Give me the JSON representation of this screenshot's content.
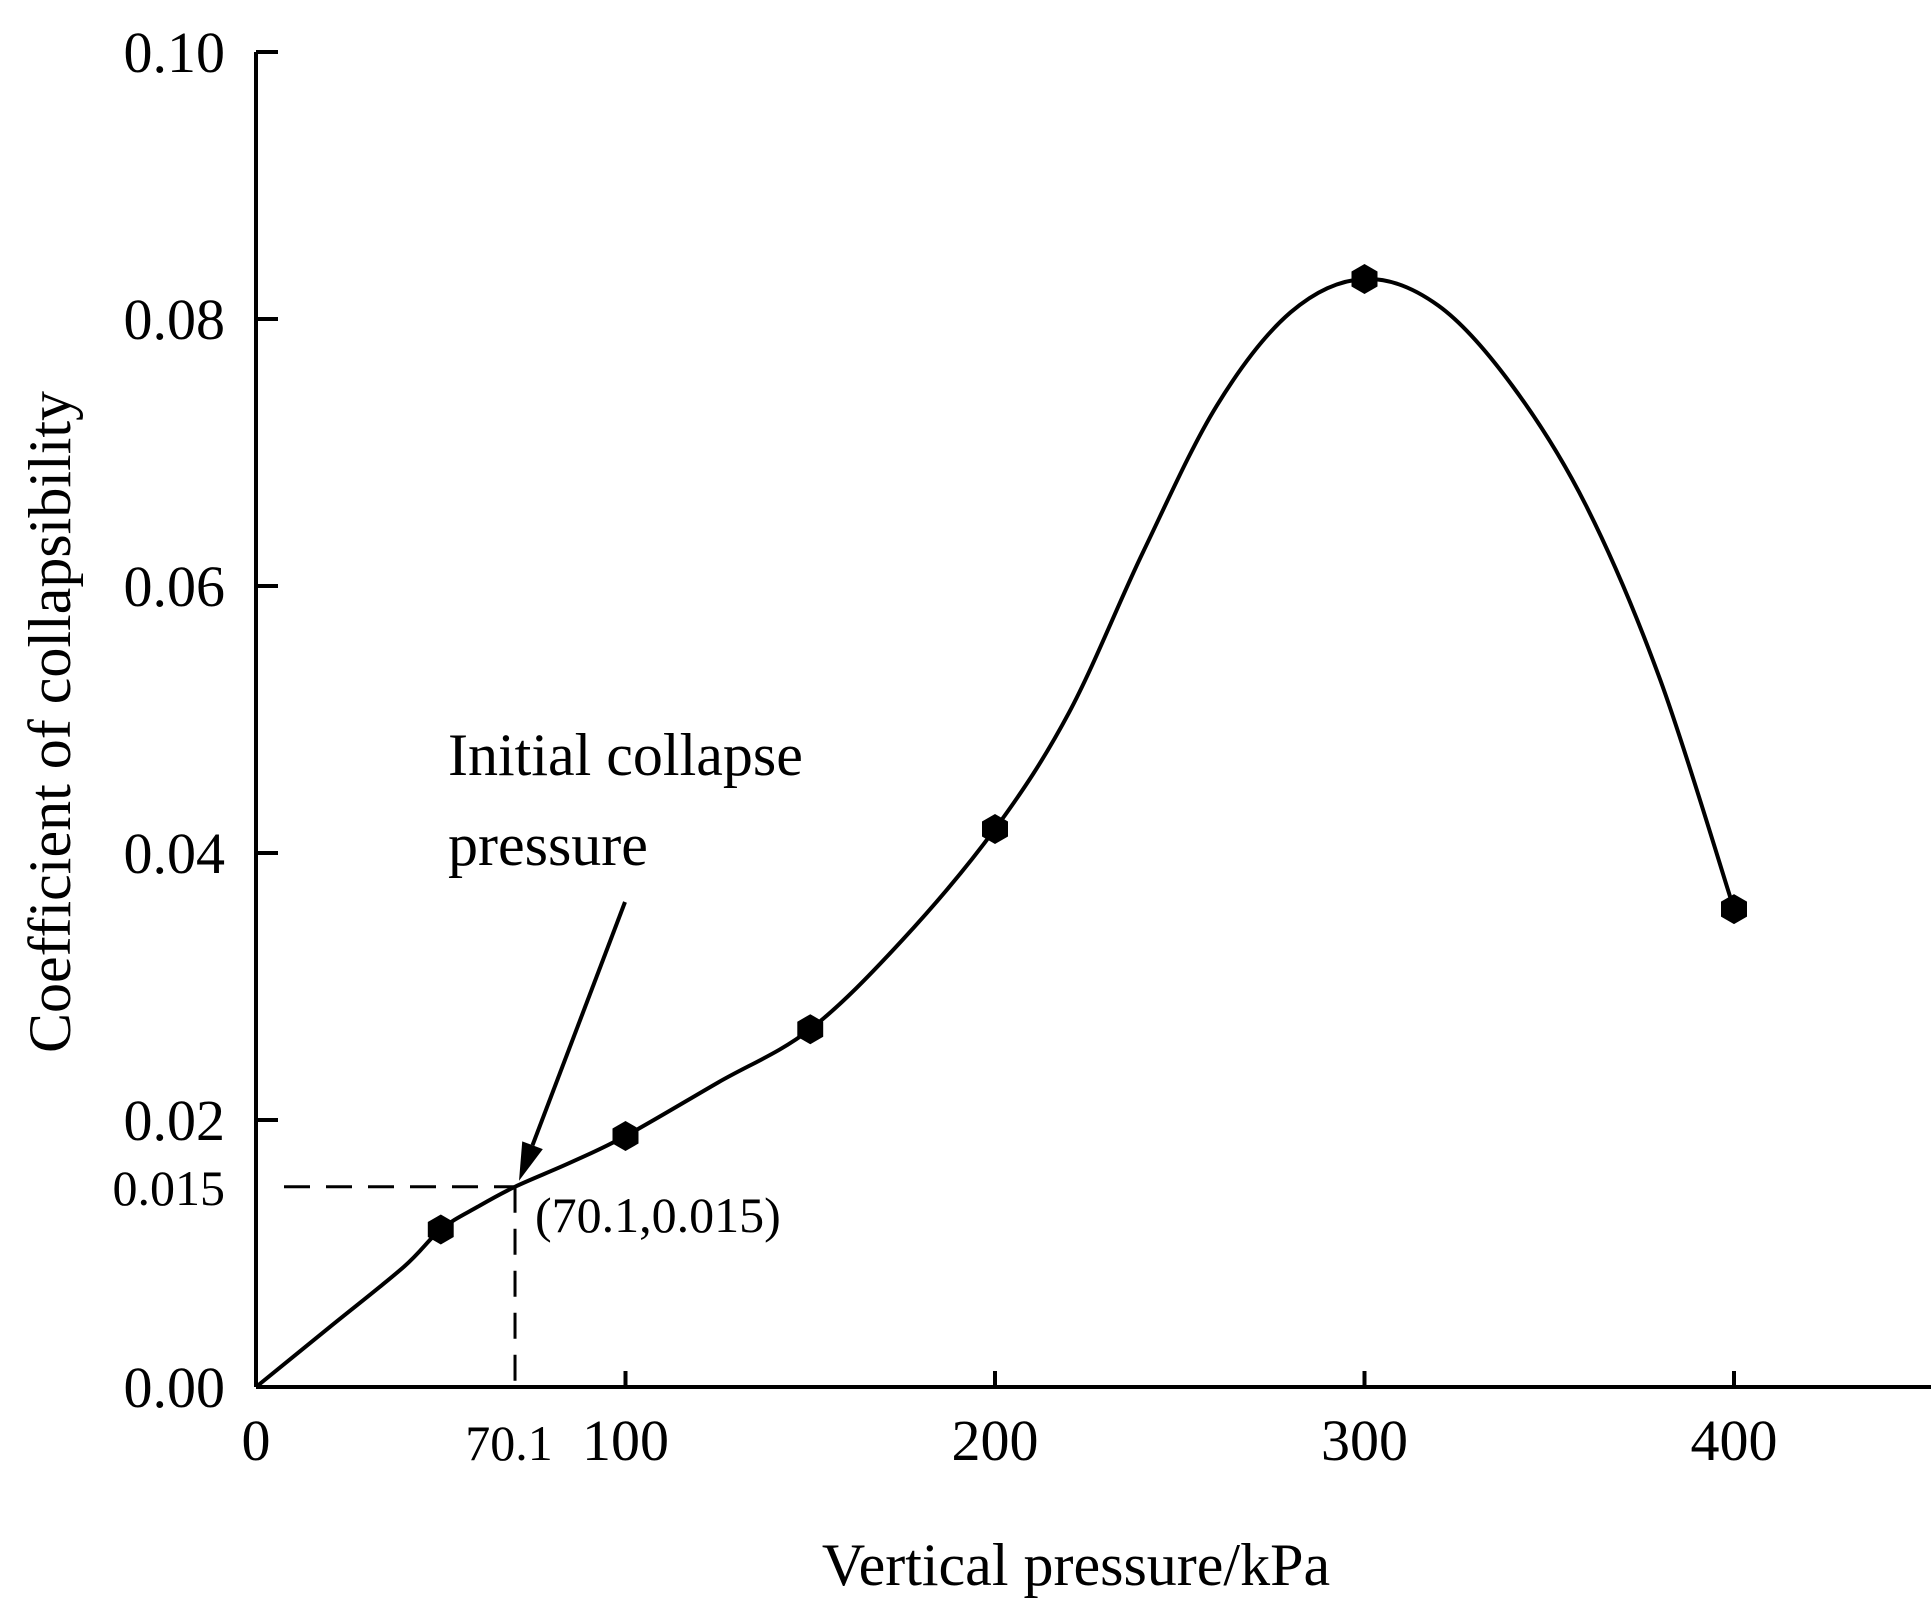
{
  "chart_data": {
    "type": "line",
    "title": "",
    "xlabel": "Vertical pressure/kPa",
    "ylabel": "Coefficient of collapsibility",
    "xlim": [
      0,
      455
    ],
    "ylim": [
      0,
      0.1
    ],
    "x_ticks": [
      {
        "value": 0,
        "label": "0"
      },
      {
        "value": 100,
        "label": "100"
      },
      {
        "value": 200,
        "label": "200"
      },
      {
        "value": 300,
        "label": "300"
      },
      {
        "value": 400,
        "label": "400"
      }
    ],
    "x_special_tick": {
      "value": 70.1,
      "label": "70.1"
    },
    "y_ticks": [
      {
        "value": 0,
        "label": "0.00"
      },
      {
        "value": 0.02,
        "label": "0.02"
      },
      {
        "value": 0.04,
        "label": "0.04"
      },
      {
        "value": 0.06,
        "label": "0.06"
      },
      {
        "value": 0.08,
        "label": "0.08"
      },
      {
        "value": 0.1,
        "label": "0.10"
      }
    ],
    "y_special_tick": {
      "value": 0.015,
      "label": "0.015"
    },
    "series": [
      {
        "name": "Coefficient of collapsibility",
        "points": [
          {
            "x": 50,
            "y": 0.0118
          },
          {
            "x": 100,
            "y": 0.0188
          },
          {
            "x": 150,
            "y": 0.0268
          },
          {
            "x": 200,
            "y": 0.0418
          },
          {
            "x": 300,
            "y": 0.083
          },
          {
            "x": 400,
            "y": 0.0358
          }
        ],
        "curve": [
          [
            0,
            0
          ],
          [
            20,
            0.0045
          ],
          [
            40,
            0.009
          ],
          [
            50,
            0.0118
          ],
          [
            60,
            0.0135
          ],
          [
            70.1,
            0.015
          ],
          [
            85,
            0.0168
          ],
          [
            100,
            0.0188
          ],
          [
            125,
            0.0228
          ],
          [
            150,
            0.0268
          ],
          [
            175,
            0.0335
          ],
          [
            200,
            0.0418
          ],
          [
            220,
            0.0505
          ],
          [
            240,
            0.0625
          ],
          [
            260,
            0.0735
          ],
          [
            280,
            0.0805
          ],
          [
            300,
            0.083
          ],
          [
            320,
            0.081
          ],
          [
            340,
            0.075
          ],
          [
            360,
            0.066
          ],
          [
            380,
            0.053
          ],
          [
            400,
            0.0358
          ]
        ]
      }
    ],
    "annotation": {
      "text_line1": "Initial collapse",
      "text_line2": "pressure",
      "point": {
        "x": 70.1,
        "y": 0.015
      },
      "coord_label": "(70.1,0.015)"
    }
  }
}
